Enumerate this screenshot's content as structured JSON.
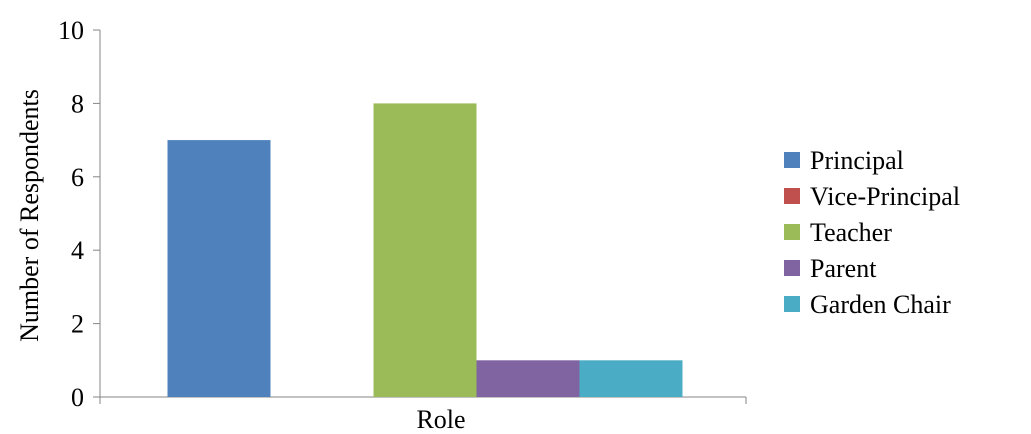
{
  "chart_data": {
    "type": "bar",
    "categories": [
      "Role"
    ],
    "series": [
      {
        "name": "Principal",
        "values": [
          7
        ],
        "color": "#4F81BD"
      },
      {
        "name": "Vice-Principal",
        "values": [
          0
        ],
        "color": "#C0504D"
      },
      {
        "name": "Teacher",
        "values": [
          8
        ],
        "color": "#9BBB59"
      },
      {
        "name": "Parent",
        "values": [
          1
        ],
        "color": "#8064A2"
      },
      {
        "name": "Garden Chair",
        "values": [
          1
        ],
        "color": "#4BACC6"
      }
    ],
    "xlabel": "Role",
    "ylabel": "Number of Respondents",
    "ylim": [
      0,
      10
    ],
    "yticks": [
      0,
      2,
      4,
      6,
      8,
      10
    ],
    "grid": false,
    "legend": "right"
  }
}
